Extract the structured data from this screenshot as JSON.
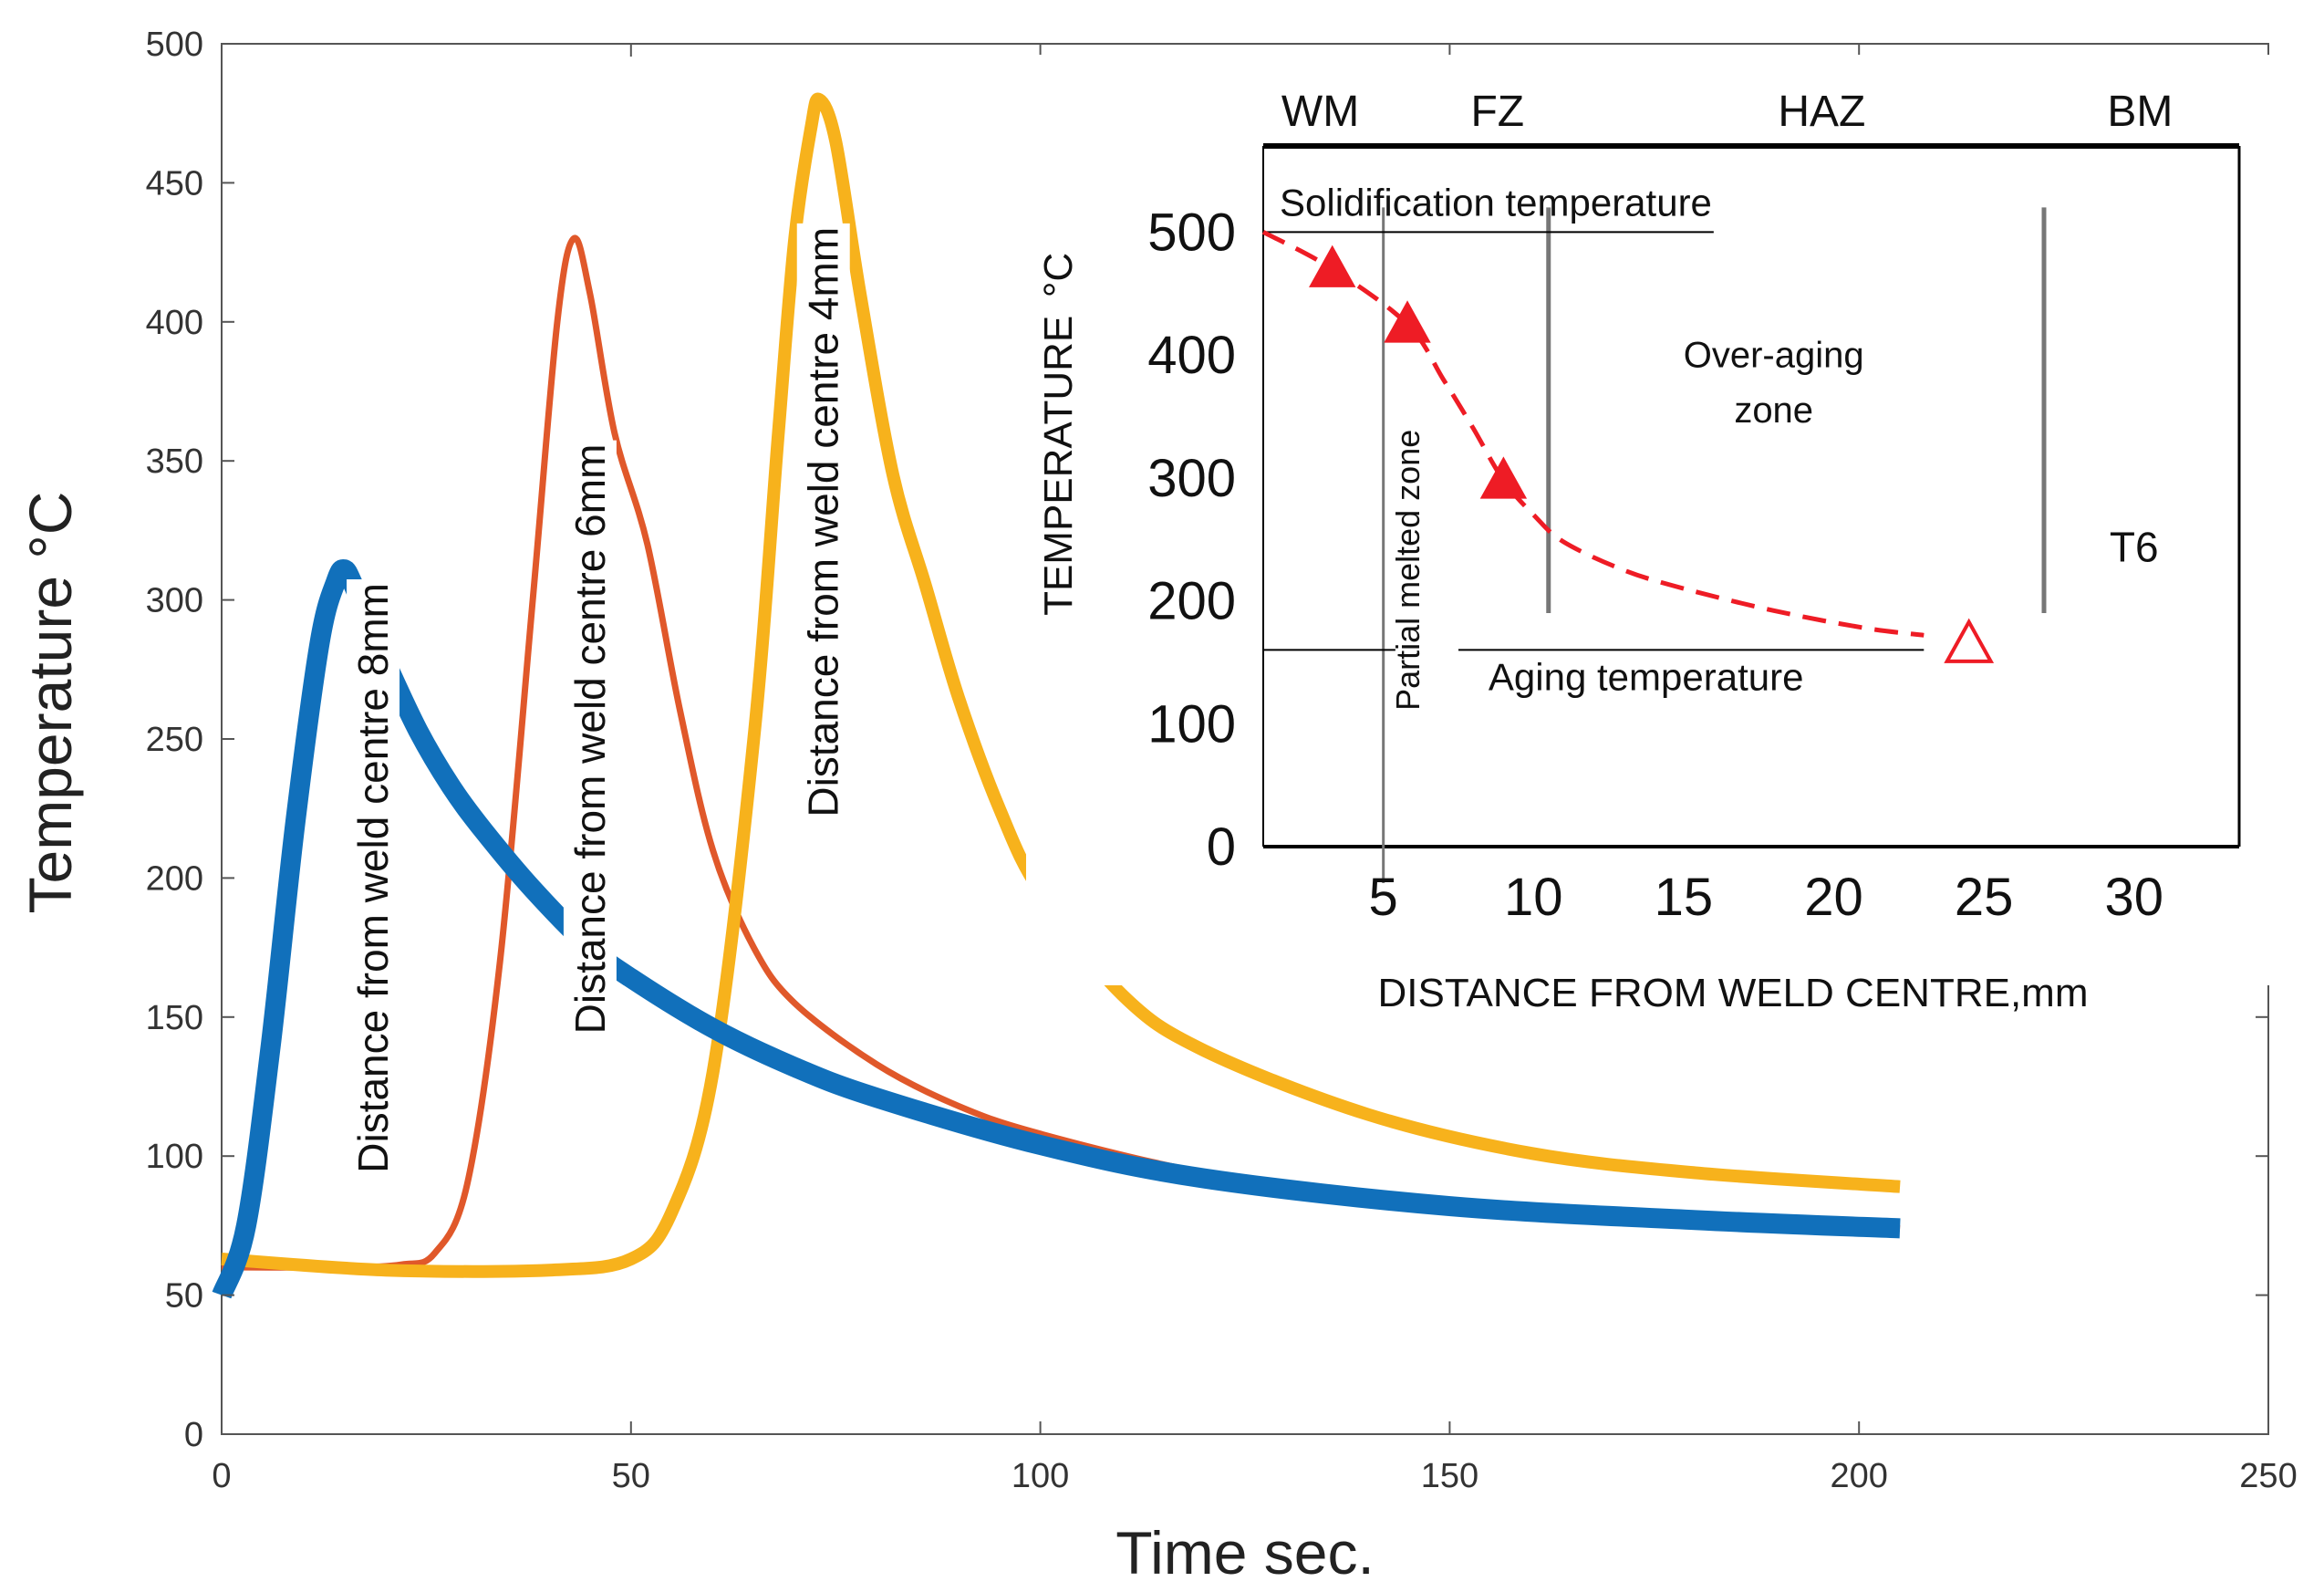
{
  "chart_data": [
    {
      "type": "line",
      "title": "",
      "xlabel": "Time sec.",
      "ylabel": "Temperature  °C",
      "xlim": [
        0,
        250
      ],
      "ylim": [
        0,
        500
      ],
      "xticks": [
        0,
        50,
        100,
        150,
        200,
        250
      ],
      "yticks": [
        0,
        50,
        100,
        150,
        200,
        250,
        300,
        350,
        400,
        450,
        500
      ],
      "grid": false,
      "series": [
        {
          "name": "Distance from weld centre 8mm",
          "color": "#1170bb",
          "x": [
            0,
            3,
            6,
            9,
            12,
            14,
            15,
            16,
            18,
            20,
            24,
            28,
            32,
            38,
            45,
            50,
            60,
            70,
            80,
            100,
            120,
            150,
            180,
            205
          ],
          "y": [
            50,
            75,
            140,
            220,
            285,
            307,
            311,
            306,
            292,
            278,
            253,
            233,
            217,
            196,
            175,
            164,
            146,
            132,
            121,
            104,
            92,
            82,
            77,
            74
          ]
        },
        {
          "name": "Distance from weld centre 6mm",
          "color": "#e0582a",
          "x": [
            0,
            15,
            22,
            26,
            30,
            34,
            38,
            41,
            43,
            45,
            48,
            52,
            56,
            60,
            65,
            70,
            80,
            90,
            100,
            120,
            140,
            160,
            180,
            205
          ],
          "y": [
            60,
            60,
            61,
            65,
            90,
            170,
            300,
            400,
            430,
            410,
            360,
            320,
            260,
            210,
            175,
            155,
            133,
            118,
            108,
            94,
            86,
            81,
            78,
            74
          ]
        },
        {
          "name": "Distance from weld centre 4mm",
          "color": "#f7b21c",
          "x": [
            0,
            20,
            40,
            50,
            55,
            60,
            65,
            68,
            70,
            72,
            73,
            75,
            78,
            82,
            86,
            90,
            95,
            100,
            110,
            120,
            140,
            160,
            180,
            205
          ],
          "y": [
            63,
            59,
            59,
            63,
            80,
            130,
            250,
            360,
            430,
            470,
            480,
            465,
            410,
            345,
            305,
            265,
            225,
            195,
            158,
            138,
            115,
            101,
            94,
            89
          ]
        }
      ]
    },
    {
      "type": "scatter",
      "title": "",
      "xlabel": "DISTANCE FROM WELD CENTRE,mm",
      "ylabel": "TEMPERATURE",
      "ylabel_unit": "°C",
      "xticks": [
        5,
        10,
        15,
        20,
        25,
        30
      ],
      "yticks": [
        0,
        100,
        200,
        300,
        400,
        500
      ],
      "xlim": [
        1,
        33.5
      ],
      "ylim": [
        0,
        570
      ],
      "grid": false,
      "zones": [
        "WM",
        "FZ",
        "HAZ",
        "BM"
      ],
      "zone_boundaries_x": [
        5,
        10.5,
        27
      ],
      "reference_lines": [
        {
          "label": "Solidification temperature",
          "y": 500
        },
        {
          "label": "Aging temperature",
          "y": 160
        }
      ],
      "annotations": [
        "Over-aging",
        "zone",
        "Partial melted zone",
        "T6"
      ],
      "points": [
        {
          "x": 3.3,
          "y": 470,
          "filled": true
        },
        {
          "x": 5.8,
          "y": 425,
          "filled": true
        },
        {
          "x": 9,
          "y": 298,
          "filled": true
        },
        {
          "x": 24.5,
          "y": 165,
          "filled": false
        }
      ],
      "trend": {
        "x": [
          1,
          3.3,
          5.8,
          7,
          8,
          9,
          10,
          11,
          13,
          15,
          18,
          21,
          23
        ],
        "y": [
          500,
          470,
          425,
          380,
          340,
          298,
          270,
          248,
          225,
          210,
          192,
          178,
          172
        ]
      },
      "marker_color": "#ee1c25"
    }
  ]
}
